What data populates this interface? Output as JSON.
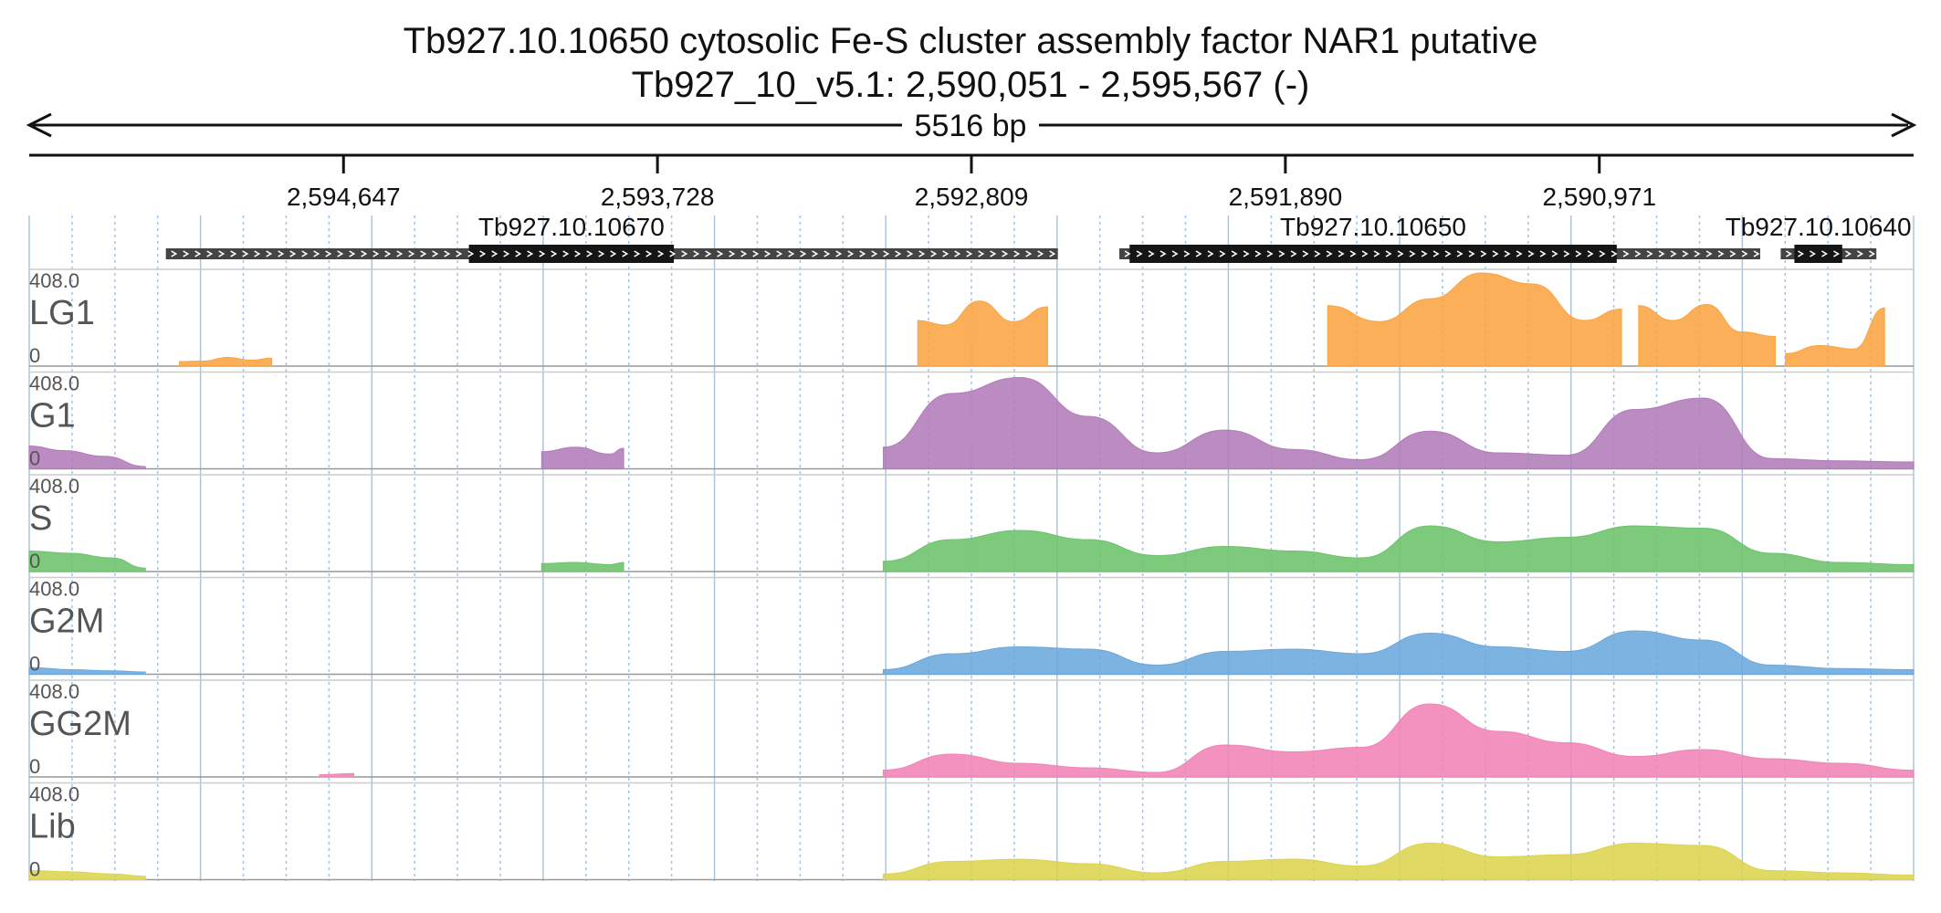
{
  "header": {
    "title": "Tb927.10.10650  cytosolic Fe-S cluster assembly factor NAR1  putative",
    "location": "Tb927_10_v5.1: 2,590,051 - 2,595,567 (-)"
  },
  "ruler": {
    "span_label": "5516 bp",
    "start": 2595567,
    "end": 2590051,
    "ticks": [
      {
        "pos": 2594647,
        "label": "2,594,647"
      },
      {
        "pos": 2593728,
        "label": "2,593,728"
      },
      {
        "pos": 2592809,
        "label": "2,592,809"
      },
      {
        "pos": 2591890,
        "label": "2,591,890"
      },
      {
        "pos": 2590971,
        "label": "2,590,971"
      }
    ]
  },
  "genes": [
    {
      "name": "Tb927.10.10670",
      "start": 2595167,
      "end": 2592556,
      "cds_start": 2594280,
      "cds_end": 2593680
    },
    {
      "name": "Tb927.10.10650",
      "start": 2592376,
      "end": 2590500,
      "cds_start": 2592346,
      "cds_end": 2590920
    },
    {
      "name": "Tb927.10.10640",
      "start": 2590440,
      "end": 2590160,
      "cds_start": 2590400,
      "cds_end": 2590260
    }
  ],
  "tracks": [
    {
      "name": "LG1",
      "max_label": "408.0",
      "min_label": "0",
      "color": "#f9a441"
    },
    {
      "name": "G1",
      "max_label": "408.0",
      "min_label": "0",
      "color": "#b27cb8"
    },
    {
      "name": "S",
      "max_label": "408.0",
      "min_label": "0",
      "color": "#6cc36a"
    },
    {
      "name": "G2M",
      "max_label": "408.0",
      "min_label": "0",
      "color": "#6aa8dc"
    },
    {
      "name": "GG2M",
      "max_label": "408.0",
      "min_label": "0",
      "color": "#f183b6"
    },
    {
      "name": "Lib",
      "max_label": "408.0",
      "min_label": "0",
      "color": "#dcd44e"
    }
  ],
  "chart_data": {
    "type": "area",
    "title": "Tb927.10.10650  cytosolic Fe-S cluster assembly factor NAR1  putative",
    "subtitle": "Tb927_10_v5.1: 2,590,051 - 2,595,567 (-)",
    "xlim": [
      2595567,
      2590051
    ],
    "ylim": [
      0,
      408.0
    ],
    "grid": true,
    "series": [
      {
        "name": "LG1",
        "segments": [
          {
            "x": [
              2595127,
              2595057,
              2594987,
              2594917,
              2594857
            ],
            "y": [
              20,
              22,
              38,
              26,
              35
            ]
          },
          {
            "x": [
              2592966,
              2592886,
              2592786,
              2592686,
              2592586
            ],
            "y": [
              200,
              180,
              285,
              195,
              260
            ]
          },
          {
            "x": [
              2591766,
              2591616,
              2591466,
              2591316,
              2591166,
              2591016,
              2590906
            ],
            "y": [
              265,
              195,
              295,
              408,
              360,
              200,
              250
            ]
          },
          {
            "x": [
              2590856,
              2590756,
              2590656,
              2590556,
              2590456
            ],
            "y": [
              265,
              200,
              270,
              150,
              130
            ]
          },
          {
            "x": [
              2590426,
              2590326,
              2590226,
              2590136
            ],
            "y": [
              55,
              90,
              75,
              255
            ]
          }
        ]
      },
      {
        "name": "G1",
        "segments": [
          {
            "x": [
              2595567,
              2595467,
              2595347,
              2595227
            ],
            "y": [
              100,
              80,
              55,
              10
            ]
          },
          {
            "x": [
              2594067,
              2593967,
              2593867,
              2593827
            ],
            "y": [
              75,
              95,
              65,
              90
            ]
          },
          {
            "x": [
              2593067,
              2592867,
              2592667,
              2592467,
              2592267,
              2592067,
              2591867,
              2591667,
              2591467,
              2591267,
              2591067,
              2590867,
              2590667,
              2590467,
              2590267,
              2590051
            ],
            "y": [
              95,
              330,
              400,
              230,
              70,
              170,
              85,
              40,
              165,
              70,
              60,
              260,
              310,
              45,
              35,
              30
            ]
          }
        ]
      },
      {
        "name": "S",
        "segments": [
          {
            "x": [
              2595567,
              2595447,
              2595327,
              2595227
            ],
            "y": [
              90,
              80,
              60,
              15
            ]
          },
          {
            "x": [
              2594067,
              2593967,
              2593867,
              2593827
            ],
            "y": [
              35,
              40,
              30,
              40
            ]
          },
          {
            "x": [
              2593067,
              2592867,
              2592667,
              2592467,
              2592267,
              2592067,
              2591867,
              2591667,
              2591467,
              2591267,
              2591067,
              2590867,
              2590667,
              2590467,
              2590267,
              2590051
            ],
            "y": [
              45,
              140,
              180,
              140,
              70,
              110,
              90,
              60,
              200,
              130,
              150,
              200,
              190,
              80,
              40,
              30
            ]
          }
        ]
      },
      {
        "name": "G2M",
        "segments": [
          {
            "x": [
              2595567,
              2595447,
              2595327,
              2595227
            ],
            "y": [
              30,
              20,
              15,
              10
            ]
          },
          {
            "x": [
              2593067,
              2592867,
              2592667,
              2592467,
              2592267,
              2592067,
              2591867,
              2591667,
              2591467,
              2591267,
              2591067,
              2590867,
              2590667,
              2590467,
              2590267,
              2590051
            ],
            "y": [
              20,
              90,
              120,
              110,
              40,
              100,
              110,
              90,
              180,
              120,
              100,
              190,
              150,
              40,
              25,
              20
            ]
          }
        ]
      },
      {
        "name": "GG2M",
        "segments": [
          {
            "x": [
              2594717,
              2594617
            ],
            "y": [
              10,
              15
            ]
          },
          {
            "x": [
              2593067,
              2592867,
              2592667,
              2592467,
              2592267,
              2592067,
              2591867,
              2591667,
              2591467,
              2591267,
              2591067,
              2590867,
              2590667,
              2590467,
              2590267,
              2590051
            ],
            "y": [
              30,
              100,
              60,
              40,
              20,
              140,
              110,
              130,
              320,
              200,
              150,
              90,
              120,
              80,
              60,
              30
            ]
          }
        ]
      },
      {
        "name": "Lib",
        "segments": [
          {
            "x": [
              2595567,
              2595447,
              2595327,
              2595227
            ],
            "y": [
              40,
              35,
              25,
              15
            ]
          },
          {
            "x": [
              2593067,
              2592867,
              2592667,
              2592467,
              2592267,
              2592067,
              2591867,
              2591667,
              2591467,
              2591267,
              2591067,
              2590867,
              2590667,
              2590467,
              2590267,
              2590051
            ],
            "y": [
              25,
              80,
              90,
              70,
              30,
              80,
              90,
              60,
              160,
              100,
              110,
              160,
              150,
              40,
              30,
              20
            ]
          }
        ]
      }
    ]
  }
}
